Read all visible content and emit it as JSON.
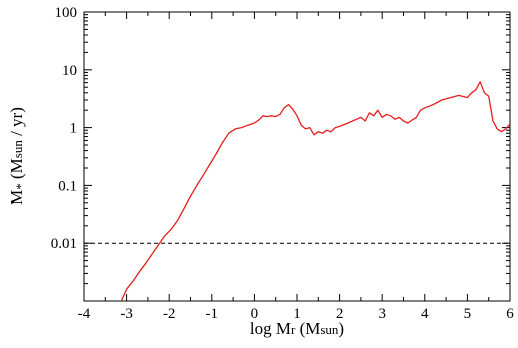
{
  "chart_data": {
    "type": "line",
    "title": "",
    "xlabel": {
      "prefix": "log M",
      "sym": "r",
      "unit_open": " (M",
      "unit_sub": "sun",
      "unit_close": ")"
    },
    "ylabel": {
      "sym": "M",
      "sub": "*",
      "unit_open": " (M",
      "unit_sub": "sun",
      "unit_close": " / yr)"
    },
    "x_scale": "linear",
    "y_scale": "log",
    "xlim": [
      -4,
      6
    ],
    "ylim": [
      0.001,
      100
    ],
    "x_ticks": [
      -4,
      -3,
      -2,
      -1,
      0,
      1,
      2,
      3,
      4,
      5,
      6
    ],
    "x_tick_labels": [
      "-4",
      "-3",
      "-2",
      "-1",
      "0",
      "1",
      "2",
      "3",
      "4",
      "5",
      "6"
    ],
    "y_ticks": [
      0.01,
      0.1,
      1,
      10,
      100
    ],
    "y_tick_labels": [
      "0.01",
      "0.1",
      "1",
      "10",
      "100"
    ],
    "grid": false,
    "colors": {
      "series": "#e41e1e",
      "reference": "#000000"
    },
    "series": [
      {
        "x": [
          -3.15,
          -3.0,
          -2.85,
          -2.7,
          -2.55,
          -2.4,
          -2.25,
          -2.1,
          -1.95,
          -1.8,
          -1.65,
          -1.5,
          -1.35,
          -1.2,
          -1.05,
          -0.9,
          -0.75,
          -0.6,
          -0.45,
          -0.3,
          -0.15,
          0.0,
          0.1,
          0.2,
          0.3,
          0.4,
          0.5,
          0.6,
          0.7,
          0.8,
          0.9,
          1.0,
          1.1,
          1.2,
          1.3,
          1.4,
          1.5,
          1.6,
          1.7,
          1.8,
          1.9,
          2.0,
          2.2,
          2.4,
          2.5,
          2.6,
          2.7,
          2.8,
          2.9,
          3.0,
          3.1,
          3.2,
          3.3,
          3.4,
          3.5,
          3.6,
          3.7,
          3.8,
          3.9,
          4.0,
          4.2,
          4.4,
          4.6,
          4.8,
          5.0,
          5.1,
          5.2,
          5.3,
          5.4,
          5.5,
          5.6,
          5.7,
          5.8,
          5.9,
          6.0
        ],
        "y": [
          0.0009,
          0.0016,
          0.0022,
          0.0032,
          0.0045,
          0.0065,
          0.0095,
          0.0135,
          0.0175,
          0.025,
          0.04,
          0.065,
          0.1,
          0.15,
          0.23,
          0.35,
          0.55,
          0.8,
          0.95,
          1.0,
          1.1,
          1.2,
          1.35,
          1.6,
          1.55,
          1.6,
          1.55,
          1.7,
          2.2,
          2.5,
          2.1,
          1.6,
          1.1,
          0.95,
          1.0,
          0.75,
          0.85,
          0.8,
          0.9,
          0.85,
          1.0,
          1.05,
          1.2,
          1.4,
          1.5,
          1.3,
          1.8,
          1.6,
          2.0,
          1.5,
          1.7,
          1.6,
          1.4,
          1.5,
          1.3,
          1.2,
          1.35,
          1.5,
          2.0,
          2.2,
          2.5,
          3.0,
          3.3,
          3.6,
          3.3,
          4.0,
          4.5,
          6.2,
          4.0,
          3.5,
          1.3,
          0.95,
          0.85,
          0.95,
          1.15
        ]
      }
    ],
    "reference_lines": [
      {
        "orientation": "horizontal",
        "y": 0.01,
        "style": "dashed"
      }
    ]
  }
}
